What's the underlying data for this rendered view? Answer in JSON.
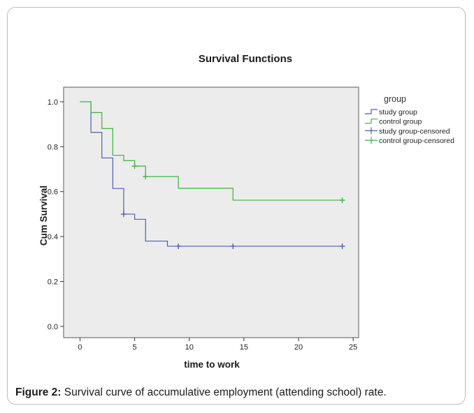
{
  "chart_data": {
    "type": "line",
    "title": "Survival Functions",
    "xlabel": "time to work",
    "ylabel": "Cum Survival",
    "xlim": [
      -1.5,
      25.5
    ],
    "ylim": [
      -0.05,
      1.065
    ],
    "xticks": [
      0,
      5,
      10,
      15,
      20,
      25
    ],
    "yticks": [
      0.0,
      0.2,
      0.4,
      0.6,
      0.8,
      1.0
    ],
    "xtick_labels": [
      "0",
      "5",
      "10",
      "15",
      "20",
      "25"
    ],
    "ytick_labels": [
      "0.0",
      "0.2",
      "0.4",
      "0.6",
      "0.8",
      "1.0"
    ],
    "grid": false,
    "plot_background": "#ececec",
    "legend_title": "group",
    "legend_position": "right",
    "series": [
      {
        "name": "study group",
        "color": "#4a5fb8",
        "style": "step",
        "x": [
          0,
          1,
          2,
          3,
          4,
          5,
          6,
          8,
          24
        ],
        "y": [
          1.0,
          0.864,
          0.75,
          0.614,
          0.5,
          0.477,
          0.38,
          0.357,
          0.357
        ]
      },
      {
        "name": "control group",
        "color": "#3bb33b",
        "style": "step",
        "x": [
          0,
          1,
          2,
          3,
          4,
          5,
          6,
          9,
          14,
          24
        ],
        "y": [
          1.0,
          0.952,
          0.881,
          0.762,
          0.738,
          0.714,
          0.667,
          0.615,
          0.562,
          0.562
        ]
      },
      {
        "name": "study group-censored",
        "color": "#4a5fb8",
        "style": "censored",
        "x": [
          4,
          9,
          14,
          24
        ],
        "y": [
          0.5,
          0.357,
          0.357,
          0.357
        ]
      },
      {
        "name": "control group-censored",
        "color": "#3bb33b",
        "style": "censored",
        "x": [
          5,
          6,
          24
        ],
        "y": [
          0.714,
          0.667,
          0.562
        ]
      }
    ]
  },
  "caption": {
    "label": "Figure 2:",
    "text": " Survival curve of accumulative employment (attending school) rate."
  }
}
